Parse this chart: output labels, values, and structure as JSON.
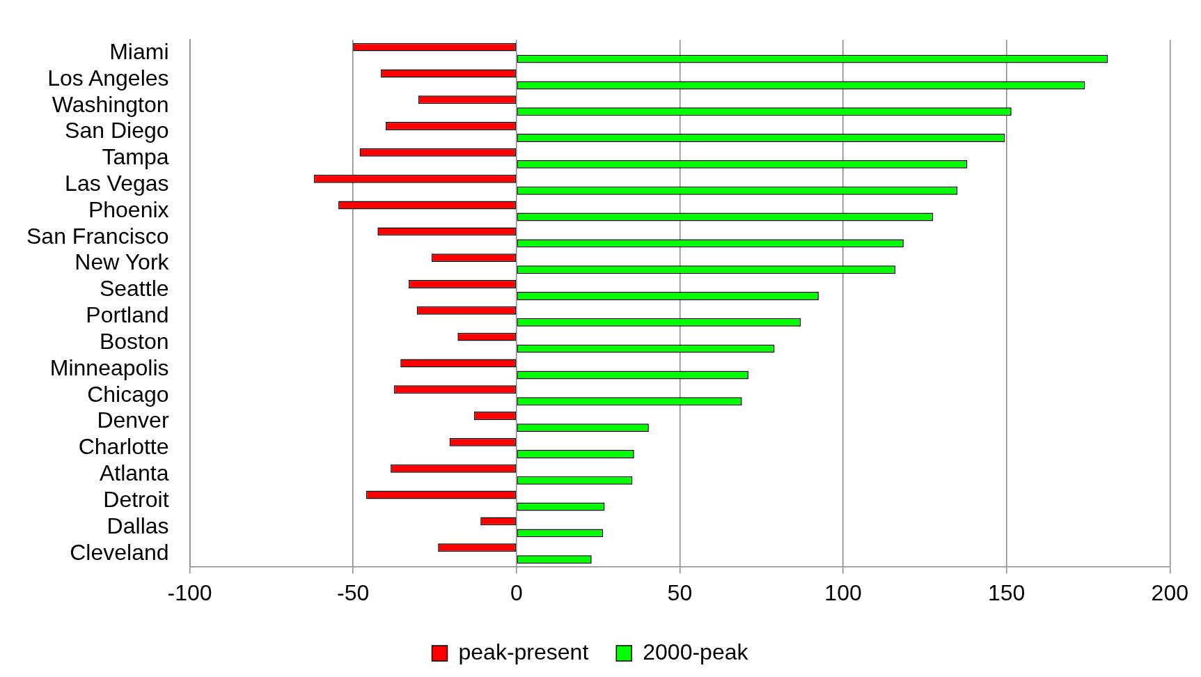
{
  "chart_data": {
    "type": "bar",
    "orientation": "horizontal",
    "categories": [
      "Miami",
      "Los Angeles",
      "Washington",
      "San Diego",
      "Tampa",
      "Las Vegas",
      "Phoenix",
      "San Francisco",
      "New York",
      "Seattle",
      "Portland",
      "Boston",
      "Minneapolis",
      "Chicago",
      "Denver",
      "Charlotte",
      "Atlanta",
      "Detroit",
      "Dallas",
      "Cleveland"
    ],
    "series": [
      {
        "name": "peak-present",
        "color": "#ff0000",
        "values": [
          -50,
          -41.5,
          -30,
          -40,
          -48,
          -62,
          -54.5,
          -42.5,
          -26,
          -33,
          -30.5,
          -18,
          -35.5,
          -37.5,
          -13,
          -20.5,
          -38.5,
          -46,
          -11,
          -24
        ]
      },
      {
        "name": "2000-peak",
        "color": "#00ff00",
        "values": [
          181,
          174,
          151.5,
          149.5,
          138,
          135,
          127.5,
          118.5,
          116,
          92.5,
          87,
          79,
          71,
          69,
          40.5,
          36,
          35.5,
          27,
          26.5,
          23
        ]
      }
    ],
    "xlim": [
      -100,
      200
    ],
    "xticks": [
      -100,
      -50,
      0,
      50,
      100,
      150,
      200
    ],
    "grid": "x",
    "legend": "bottom"
  }
}
